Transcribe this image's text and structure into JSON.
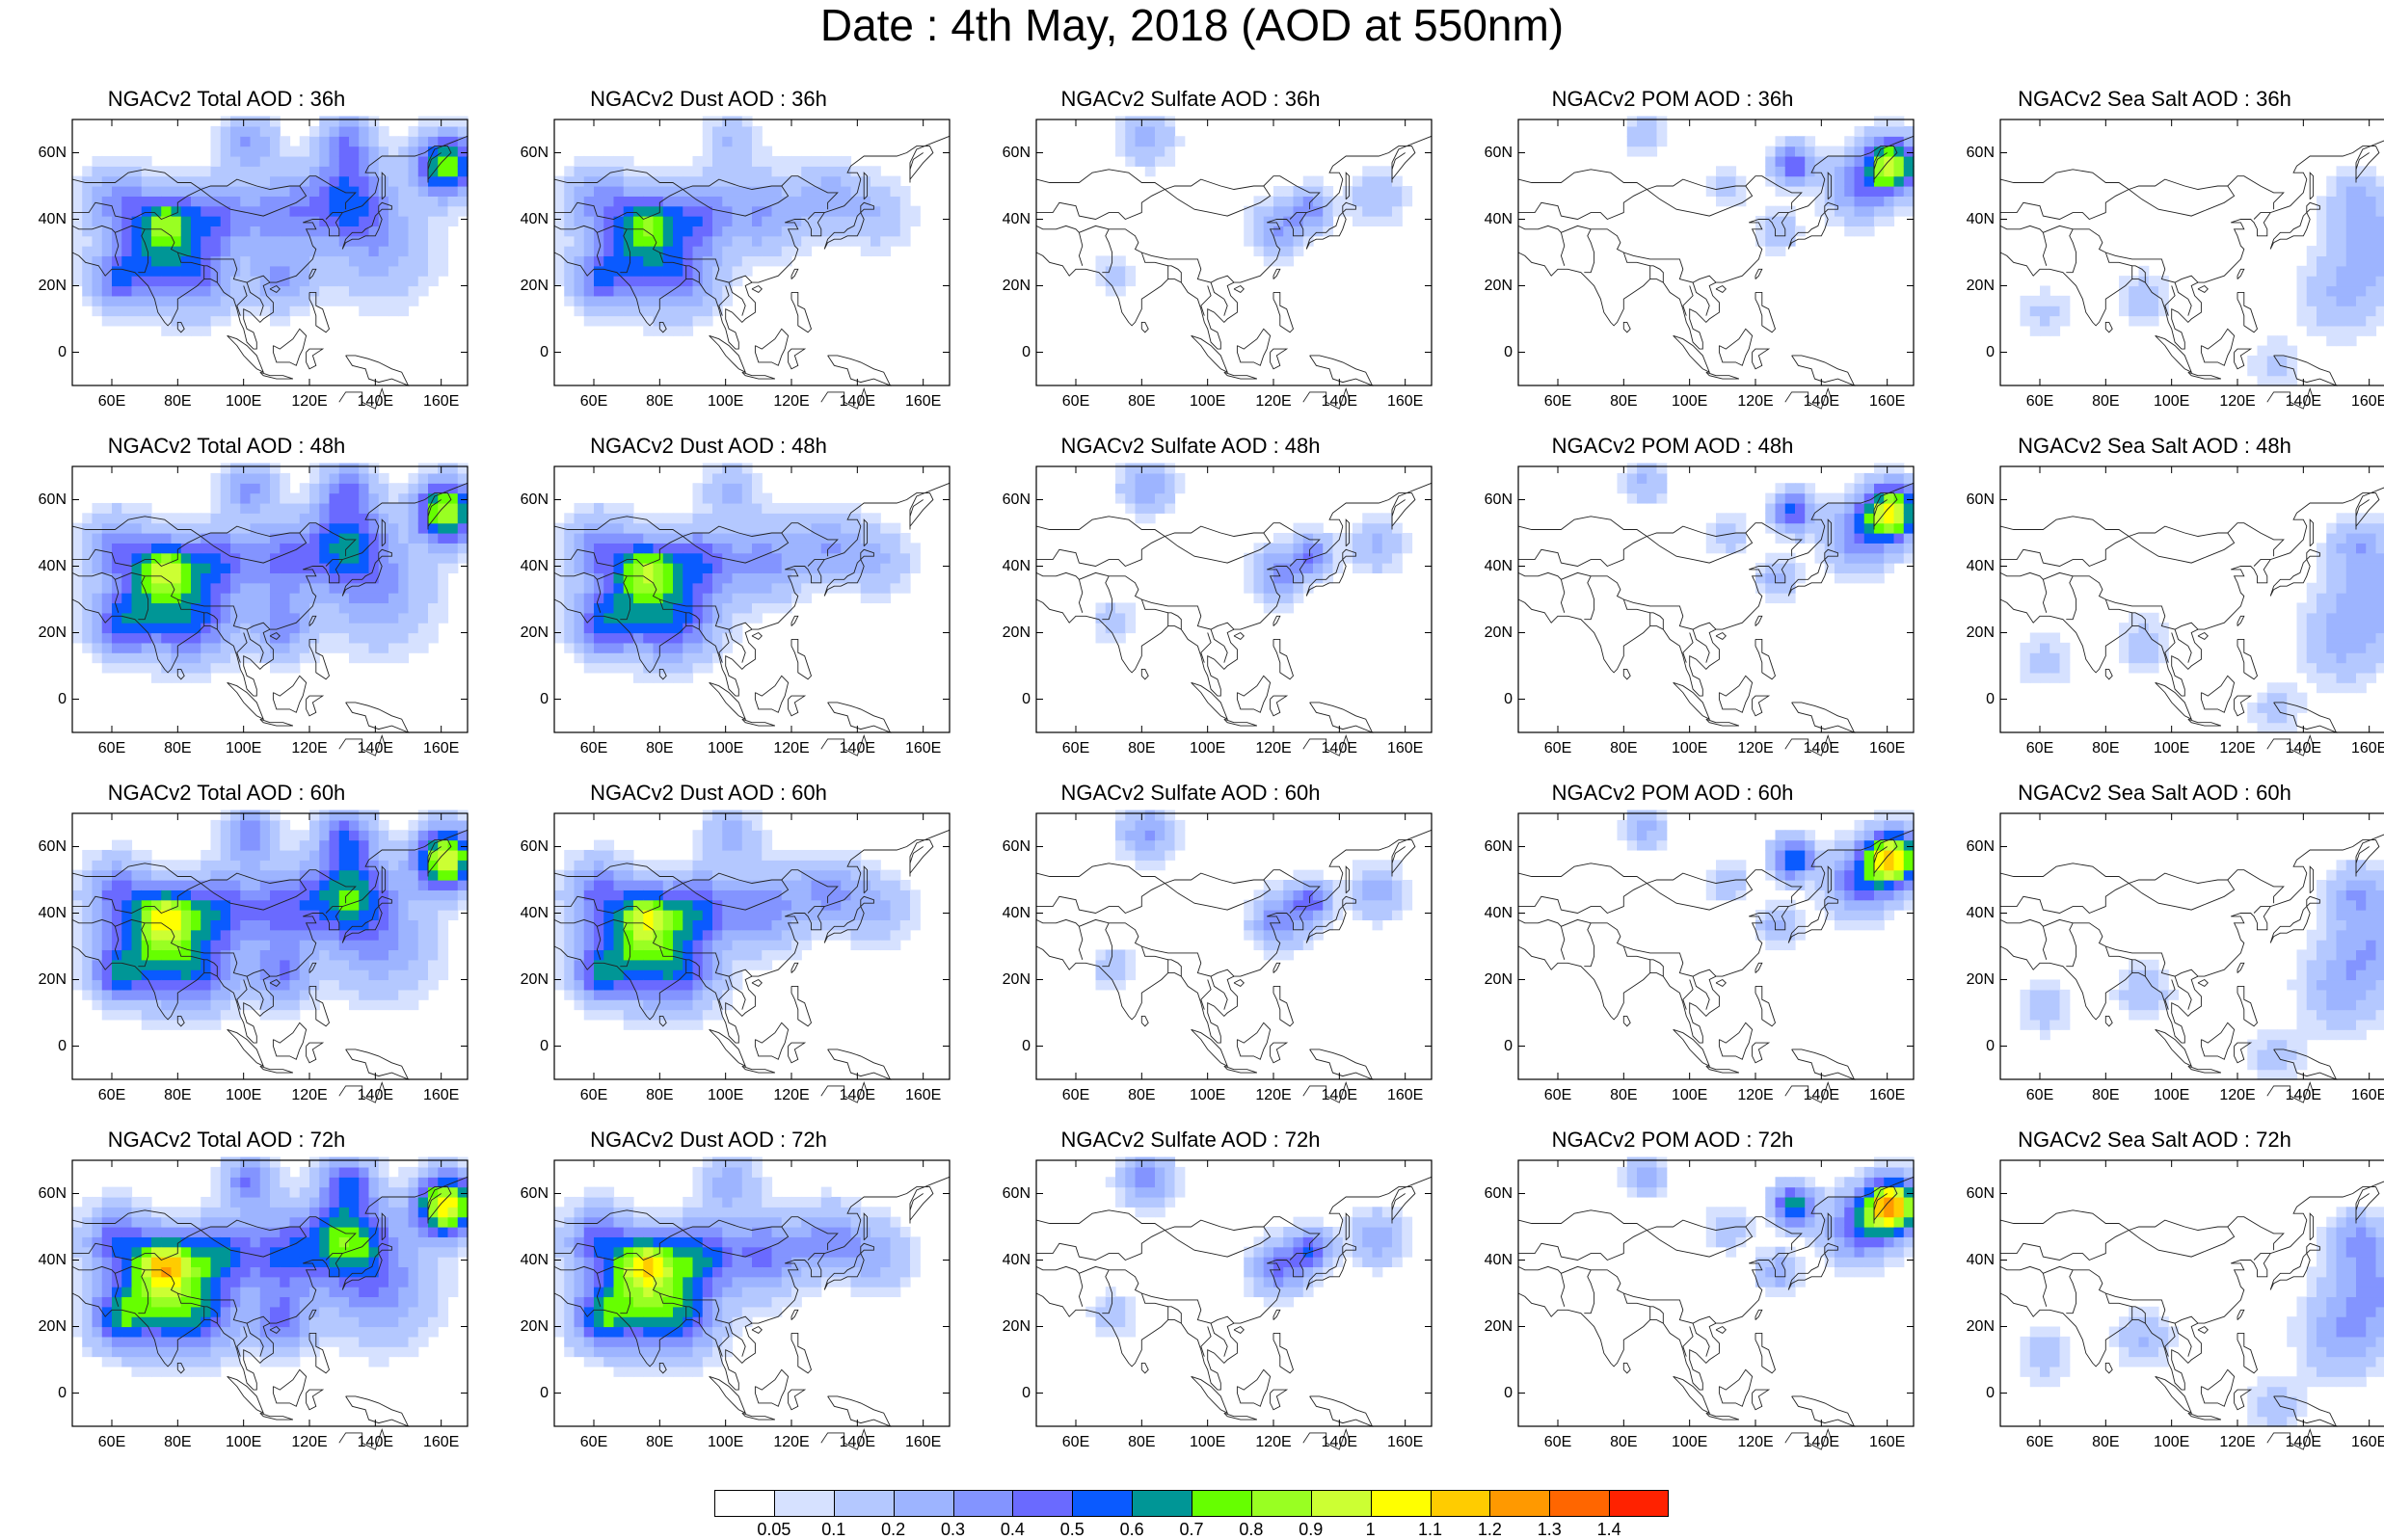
{
  "title": "Date : 4th May, 2018 (AOD at 550nm)",
  "panels": [
    [
      "NGACv2 Total AOD : 36h",
      "NGACv2 Dust AOD : 36h",
      "NGACv2 Sulfate AOD : 36h",
      "NGACv2 POM AOD : 36h",
      "NGACv2 Sea Salt AOD : 36h"
    ],
    [
      "NGACv2 Total AOD : 48h",
      "NGACv2 Dust AOD : 48h",
      "NGACv2 Sulfate AOD : 48h",
      "NGACv2 POM AOD : 48h",
      "NGACv2 Sea Salt AOD : 48h"
    ],
    [
      "NGACv2 Total AOD : 60h",
      "NGACv2 Dust AOD : 60h",
      "NGACv2 Sulfate AOD : 60h",
      "NGACv2 POM AOD : 60h",
      "NGACv2 Sea Salt AOD : 60h"
    ],
    [
      "NGACv2 Total AOD : 72h",
      "NGACv2 Dust AOD : 72h",
      "NGACv2 Sulfate AOD : 72h",
      "NGACv2 POM AOD : 72h",
      "NGACv2 Sea Salt  AOD : 72h"
    ]
  ],
  "lat_labels": [
    "60N",
    "40N",
    "20N",
    "0"
  ],
  "lon_labels": [
    "60E",
    "80E",
    "100E",
    "120E",
    "140E",
    "160E"
  ],
  "colorbar": {
    "labels": [
      "0.05",
      "0.1",
      "0.2",
      "0.3",
      "0.4",
      "0.5",
      "0.6",
      "0.7",
      "0.8",
      "0.9",
      "1",
      "1.1",
      "1.2",
      "1.3",
      "1.4"
    ],
    "colors": [
      "#ffffff",
      "#d6e1ff",
      "#b4c8ff",
      "#9db4ff",
      "#8394ff",
      "#6a6aff",
      "#0a5aff",
      "#009696",
      "#66ff00",
      "#99ff22",
      "#ccff33",
      "#ffff00",
      "#ffcc00",
      "#ff9900",
      "#ff6600",
      "#ff2200"
    ]
  }
}
